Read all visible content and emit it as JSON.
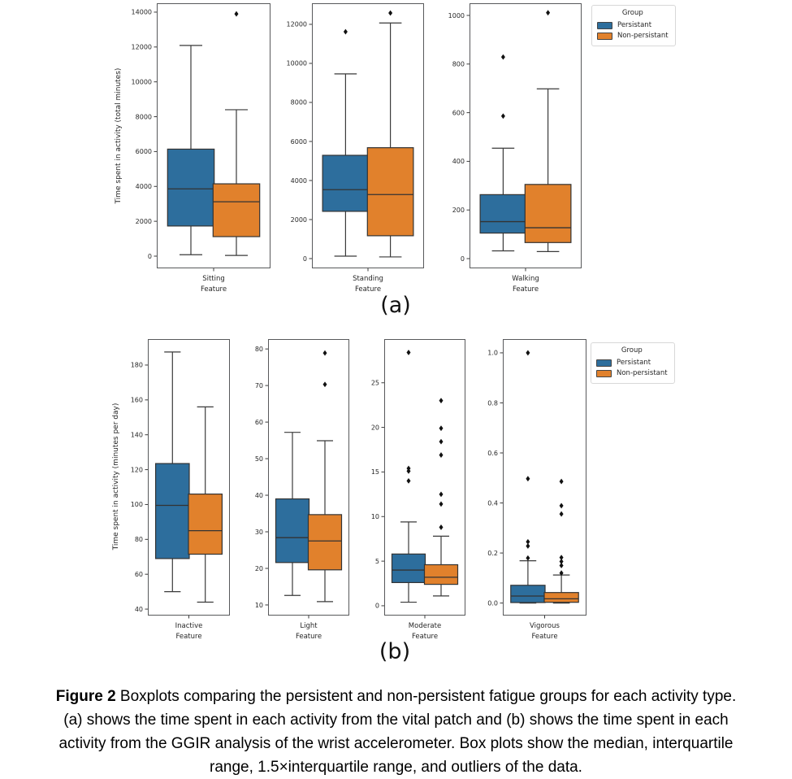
{
  "caption": {
    "bold_label": "Figure 2",
    "lines": [
      " Boxplots comparing the persistent and non-persistent fatigue groups for each activity type.",
      "(a) shows the time spent in each activity from the vital patch and (b) shows the time spent in each",
      "activity from the GGIR analysis of the wrist accelerometer. Box plots show the median, interquartile",
      "range, 1.5×interquartile range, and outliers of the data."
    ]
  },
  "chart_data": [
    {
      "id": "a",
      "type": "box",
      "label": "(a)",
      "ylabel": "Time spent in activity (total minutes)",
      "xlabel": "Feature",
      "legend": {
        "title": "Group",
        "position": "upper right, outside axes",
        "entries": [
          {
            "label": "Persistant",
            "color": "#2d6e9d"
          },
          {
            "label": "Non-persistant",
            "color": "#e1812c"
          }
        ]
      },
      "panels": [
        {
          "category": "Sitting",
          "ylim": [
            -700,
            14510
          ],
          "yticks": [
            0,
            2000,
            4000,
            6000,
            8000,
            10000,
            12000,
            14000
          ],
          "ytick_labels": [
            "0",
            "2000",
            "4000",
            "6000",
            "8000",
            "10000",
            "12000",
            "14000"
          ],
          "groups": [
            {
              "name": "Persistant",
              "whislo": 80,
              "q1": 1730,
              "med": 3860,
              "q3": 6140,
              "whishi": 12090,
              "outliers": []
            },
            {
              "name": "Non-persistant",
              "whislo": 40,
              "q1": 1120,
              "med": 3120,
              "q3": 4150,
              "whishi": 8400,
              "outliers": [
                13900
              ]
            }
          ]
        },
        {
          "category": "Standing",
          "ylim": [
            -500,
            13080
          ],
          "yticks": [
            0,
            2000,
            4000,
            6000,
            8000,
            10000,
            12000
          ],
          "ytick_labels": [
            "0",
            "2000",
            "4000",
            "6000",
            "8000",
            "10000",
            "12000"
          ],
          "groups": [
            {
              "name": "Persistant",
              "whislo": 125,
              "q1": 2420,
              "med": 3530,
              "q3": 5290,
              "whishi": 9460,
              "outliers": [
                11620
              ]
            },
            {
              "name": "Non-persistant",
              "whislo": 85,
              "q1": 1170,
              "med": 3280,
              "q3": 5680,
              "whishi": 12070,
              "outliers": [
                12580
              ]
            }
          ]
        },
        {
          "category": "Walking",
          "ylim": [
            -40,
            1050
          ],
          "yticks": [
            0,
            200,
            400,
            600,
            800,
            1000
          ],
          "ytick_labels": [
            "0",
            "200",
            "400",
            "600",
            "800",
            "1000"
          ],
          "groups": [
            {
              "name": "Persistant",
              "whislo": 32,
              "q1": 105,
              "med": 152,
              "q3": 263,
              "whishi": 454,
              "outliers": [
                586,
                829
              ]
            },
            {
              "name": "Non-persistant",
              "whislo": 29,
              "q1": 66,
              "med": 127,
              "q3": 305,
              "whishi": 698,
              "outliers": [
                1011
              ]
            }
          ]
        }
      ]
    },
    {
      "id": "b",
      "type": "box",
      "label": "(b)",
      "ylabel": "Time spent in activity (minutes per day)",
      "xlabel": "Feature",
      "legend": {
        "title": "Group",
        "position": "upper right, outside axes",
        "entries": [
          {
            "label": "Persistant",
            "color": "#2d6e9d"
          },
          {
            "label": "Non-persistant",
            "color": "#e1812c"
          }
        ]
      },
      "panels": [
        {
          "category": "Inactive",
          "ylim": [
            36.3,
            194.9
          ],
          "yticks": [
            40,
            60,
            80,
            100,
            120,
            140,
            160,
            180
          ],
          "ytick_labels": [
            "40",
            "60",
            "80",
            "100",
            "120",
            "140",
            "160",
            "180"
          ],
          "groups": [
            {
              "name": "Persistant",
              "whislo": 50,
              "q1": 69,
              "med": 99.5,
              "q3": 123.5,
              "whishi": 187.5,
              "outliers": []
            },
            {
              "name": "Non-persistant",
              "whislo": 44,
              "q1": 71.5,
              "med": 85,
              "q3": 106,
              "whishi": 156,
              "outliers": []
            }
          ]
        },
        {
          "category": "Light",
          "ylim": [
            7.1,
            82.7
          ],
          "yticks": [
            10,
            20,
            30,
            40,
            50,
            60,
            70,
            80
          ],
          "ytick_labels": [
            "10",
            "20",
            "30",
            "40",
            "50",
            "60",
            "70",
            "80"
          ],
          "groups": [
            {
              "name": "Persistant",
              "whislo": 12.6,
              "q1": 21.6,
              "med": 28.4,
              "q3": 39,
              "whishi": 57.2,
              "outliers": []
            },
            {
              "name": "Non-persistant",
              "whislo": 10.9,
              "q1": 19.6,
              "med": 27.5,
              "q3": 34.7,
              "whishi": 54.9,
              "outliers": [
                70.3,
                78.9
              ]
            }
          ]
        },
        {
          "category": "Moderate",
          "ylim": [
            -1.1,
            29.9
          ],
          "yticks": [
            0,
            5,
            10,
            15,
            20,
            25
          ],
          "ytick_labels": [
            "0",
            "5",
            "10",
            "15",
            "20",
            "25"
          ],
          "groups": [
            {
              "name": "Persistant",
              "whislo": 0.4,
              "q1": 2.6,
              "med": 4.0,
              "q3": 5.8,
              "whishi": 9.4,
              "outliers": [
                14.0,
                15.1,
                15.4,
                28.4
              ]
            },
            {
              "name": "Non-persistant",
              "whislo": 1.1,
              "q1": 2.4,
              "med": 3.2,
              "q3": 4.6,
              "whishi": 7.8,
              "outliers": [
                8.8,
                11.4,
                12.5,
                16.9,
                18.4,
                19.9,
                23.0
              ]
            }
          ]
        },
        {
          "category": "Vigorous",
          "ylim": [
            -0.05,
            1.055
          ],
          "yticks": [
            0,
            0.2,
            0.4,
            0.6,
            0.8,
            1.0
          ],
          "ytick_labels": [
            "0.0",
            "0.2",
            "0.4",
            "0.6",
            "0.8",
            "1.0"
          ],
          "groups": [
            {
              "name": "Persistant",
              "whislo": 0.0,
              "q1": 0.002,
              "med": 0.028,
              "q3": 0.071,
              "whishi": 0.169,
              "outliers": [
                0.18,
                0.228,
                0.245,
                0.497,
                1.0
              ]
            },
            {
              "name": "Non-persistant",
              "whislo": 0.0,
              "q1": 0.003,
              "med": 0.017,
              "q3": 0.042,
              "whishi": 0.112,
              "outliers": [
                0.12,
                0.15,
                0.166,
                0.182,
                0.356,
                0.389,
                0.486
              ]
            }
          ]
        }
      ]
    }
  ]
}
